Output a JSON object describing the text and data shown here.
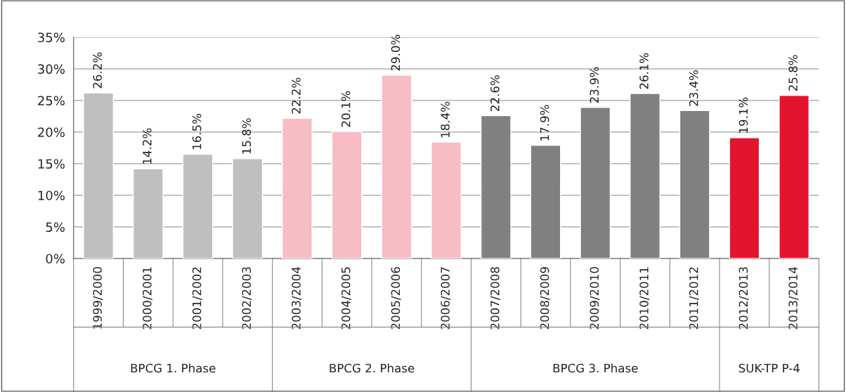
{
  "chart_data": {
    "type": "bar",
    "stacked": true,
    "categories": [
      "1999/2000",
      "2000/2001",
      "2001/2002",
      "2002/2003",
      "2003/2004",
      "2004/2005",
      "2005/2006",
      "2006/2007",
      "2007/2008",
      "2008/2009",
      "2009/2010",
      "2010/2011",
      "2011/2012",
      "2012/2013",
      "2013/2014"
    ],
    "series": [
      {
        "color": "#bfbfbf",
        "values": [
          26.2,
          14.2,
          16.5,
          15.8,
          null,
          null,
          null,
          null,
          null,
          null,
          null,
          null,
          null,
          null,
          null
        ],
        "value_labels": [
          "26.2%",
          "14.2%",
          "16.5%",
          "15.8%",
          null,
          null,
          null,
          null,
          null,
          null,
          null,
          null,
          null,
          null,
          null
        ]
      },
      {
        "color": "#f7bcc4",
        "values": [
          null,
          null,
          null,
          null,
          22.2,
          20.1,
          29.0,
          18.4,
          null,
          null,
          null,
          null,
          null,
          null,
          null
        ],
        "value_labels": [
          null,
          null,
          null,
          null,
          "22.2%",
          "20.1%",
          "29.0%",
          "18.4%",
          null,
          null,
          null,
          null,
          null,
          null,
          null
        ]
      },
      {
        "color": "#808080",
        "values": [
          null,
          null,
          null,
          null,
          null,
          null,
          null,
          null,
          22.6,
          17.9,
          23.9,
          26.1,
          23.4,
          null,
          null
        ],
        "value_labels": [
          null,
          null,
          null,
          null,
          null,
          null,
          null,
          null,
          "22.6%",
          "17.9%",
          "23.9%",
          "26.1%",
          "23.4%",
          null,
          null
        ]
      },
      {
        "color": "#e4142f",
        "values": [
          null,
          null,
          null,
          null,
          null,
          null,
          null,
          null,
          null,
          null,
          null,
          null,
          null,
          19.1,
          25.8
        ],
        "value_labels": [
          null,
          null,
          null,
          null,
          null,
          null,
          null,
          null,
          null,
          null,
          null,
          null,
          null,
          "19.1%",
          "25.8%"
        ]
      }
    ],
    "ylim": [
      0,
      35
    ],
    "yticks": [
      {
        "value": 0,
        "label": "0%"
      },
      {
        "value": 5,
        "label": "5%"
      },
      {
        "value": 10,
        "label": "10%"
      },
      {
        "value": 15,
        "label": "15%"
      },
      {
        "value": 20,
        "label": "20%"
      },
      {
        "value": 25,
        "label": "25%"
      },
      {
        "value": 30,
        "label": "30%"
      },
      {
        "value": 35,
        "label": "35%"
      }
    ],
    "annotations": [
      "BPCG 1. Phase",
      "BPCG 2. Phase",
      "BPCG 3. Phase",
      "SUK-TP P-4"
    ],
    "grid": "y",
    "legend": false
  }
}
